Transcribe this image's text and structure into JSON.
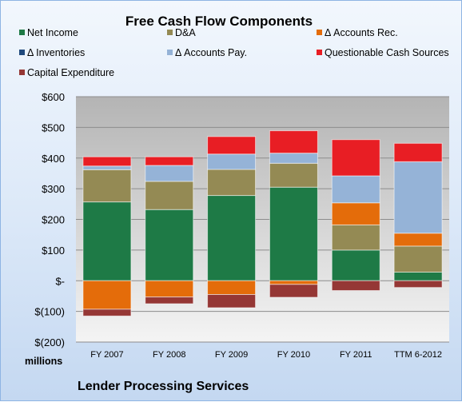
{
  "chart_data": {
    "type": "bar",
    "stacked": true,
    "title": "Free Cash Flow Components",
    "categories": [
      "FY 2007",
      "FY 2008",
      "FY 2009",
      "FY 2010",
      "FY 2011",
      "TTM 6-2012"
    ],
    "series": [
      {
        "name": "Net Income",
        "color": "#1e7a46",
        "values": [
          257,
          232,
          278,
          305,
          100,
          28
        ]
      },
      {
        "name": "D&A",
        "color": "#948a54",
        "values": [
          105,
          92,
          85,
          78,
          82,
          85
        ]
      },
      {
        "name": "Δ Accounts Rec.",
        "color": "#e46c0a",
        "values": [
          -93,
          -53,
          -45,
          -12,
          72,
          42
        ]
      },
      {
        "name": "Δ Inventories",
        "color": "#1f497d",
        "values": [
          0,
          0,
          0,
          0,
          0,
          0
        ]
      },
      {
        "name": "Δ Accounts Pay.",
        "color": "#95b3d7",
        "values": [
          12,
          52,
          50,
          33,
          88,
          233
        ]
      },
      {
        "name": "Questionable Cash Sources",
        "color": "#e81e24",
        "values": [
          30,
          28,
          57,
          73,
          118,
          60
        ]
      },
      {
        "name": "Capital Expenditure",
        "color": "#953735",
        "values": [
          -22,
          -22,
          -43,
          -42,
          -32,
          -22
        ]
      }
    ],
    "y_ticks": [
      {
        "value": 600,
        "label": "$600"
      },
      {
        "value": 500,
        "label": "$500"
      },
      {
        "value": 400,
        "label": "$400"
      },
      {
        "value": 300,
        "label": "$300"
      },
      {
        "value": 200,
        "label": "$200"
      },
      {
        "value": 100,
        "label": "$100"
      },
      {
        "value": 0,
        "label": "$-"
      },
      {
        "value": -100,
        "label": "$(100)"
      },
      {
        "value": -200,
        "label": "$(200)"
      }
    ],
    "ylim": [
      -200,
      600
    ],
    "ylabel": "millions",
    "xlabel": "",
    "grid": true,
    "legend_position": "top",
    "footnote": "Lender Processing Services"
  }
}
